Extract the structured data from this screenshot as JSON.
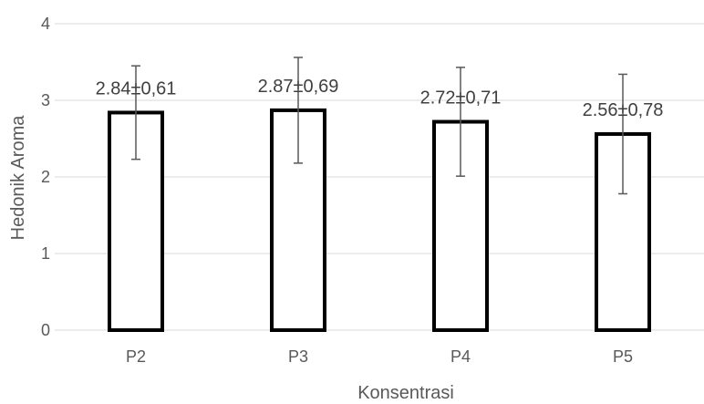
{
  "chart_data": {
    "type": "bar",
    "categories": [
      "P2",
      "P3",
      "P4",
      "P5"
    ],
    "values": [
      2.84,
      2.87,
      2.72,
      2.56
    ],
    "errors": [
      0.61,
      0.69,
      0.71,
      0.78
    ],
    "data_labels": [
      "2.84±0,61",
      "2.87±0,69",
      "2.72±0,71",
      "2.56±0,78"
    ],
    "xlabel": "Konsentrasi",
    "ylabel": "Hedonik Aroma",
    "ylim": [
      0,
      4
    ],
    "yticks": [
      "0",
      "1",
      "2",
      "3",
      "4"
    ],
    "grid": true,
    "legend": "none",
    "colors": {
      "bar_fill": "#ffffff",
      "bar_stroke": "#000000",
      "error_bar": "#595959",
      "grid": "#d9d9d9",
      "text": "#595959"
    }
  }
}
